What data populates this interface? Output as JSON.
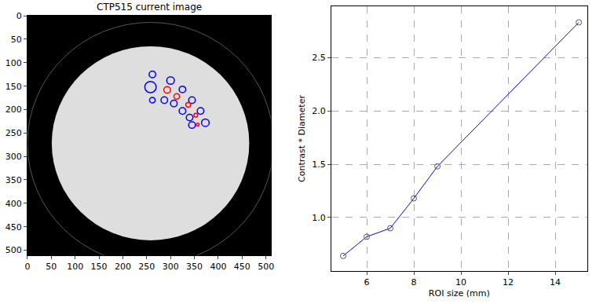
{
  "chart_data": [
    {
      "type": "image",
      "title": "CTP515 current image",
      "xlim": [
        0,
        511
      ],
      "ylim": [
        511,
        0
      ],
      "xticks": [
        0,
        50,
        100,
        150,
        200,
        250,
        300,
        350,
        400,
        450,
        500
      ],
      "yticks": [
        0,
        50,
        100,
        150,
        200,
        250,
        300,
        350,
        400,
        450,
        500
      ],
      "ring": {
        "x": 258,
        "y": 272,
        "r": 258,
        "color": "#555555"
      },
      "phantom": {
        "x": 258,
        "y": 272,
        "r": 207,
        "color": "#dedede"
      },
      "circles": [
        {
          "x": 262,
          "y": 125,
          "r": 7,
          "color": "#0000ff"
        },
        {
          "x": 262,
          "y": 180,
          "r": 6,
          "color": "#0000ff"
        },
        {
          "x": 258,
          "y": 152,
          "r": 12,
          "color": "#0000ff"
        },
        {
          "x": 300,
          "y": 138,
          "r": 8,
          "color": "#0000ff"
        },
        {
          "x": 287,
          "y": 180,
          "r": 7,
          "color": "#0000ff"
        },
        {
          "x": 325,
          "y": 157,
          "r": 7,
          "color": "#0000ff"
        },
        {
          "x": 307,
          "y": 187,
          "r": 7,
          "color": "#0000ff"
        },
        {
          "x": 345,
          "y": 180,
          "r": 7,
          "color": "#0000ff"
        },
        {
          "x": 325,
          "y": 203,
          "r": 7,
          "color": "#0000ff"
        },
        {
          "x": 363,
          "y": 203,
          "r": 7,
          "color": "#0000ff"
        },
        {
          "x": 340,
          "y": 217,
          "r": 7,
          "color": "#0000ff"
        },
        {
          "x": 373,
          "y": 228,
          "r": 8,
          "color": "#0000ff"
        },
        {
          "x": 345,
          "y": 233,
          "r": 7,
          "color": "#0000ff"
        },
        {
          "x": 293,
          "y": 158,
          "r": 7,
          "color": "#ff0000"
        },
        {
          "x": 313,
          "y": 172,
          "r": 6,
          "color": "#ff0000"
        },
        {
          "x": 337,
          "y": 190,
          "r": 5,
          "color": "#ff0000"
        },
        {
          "x": 353,
          "y": 212,
          "r": 4,
          "color": "#ff0000"
        },
        {
          "x": 357,
          "y": 232,
          "r": 3,
          "color": "#ff0000"
        }
      ]
    },
    {
      "type": "line",
      "x_label": "ROI size (mm)",
      "y_label": "Contrast * Diameter",
      "x": [
        5,
        6,
        7,
        8,
        9,
        15
      ],
      "values": [
        0.64,
        0.82,
        0.9,
        1.18,
        1.48,
        2.83
      ],
      "color": "#0000ff",
      "marker": "open-circle",
      "xlim": [
        4.5,
        15.35
      ],
      "ylim": [
        0.5,
        2.98
      ],
      "xticks": [
        6,
        8,
        10,
        12,
        14
      ],
      "yticks": [
        {
          "value": 1,
          "label": "1.0"
        },
        1.5,
        {
          "value": 2,
          "label": "2.0"
        },
        2.5
      ],
      "grid": true
    }
  ]
}
